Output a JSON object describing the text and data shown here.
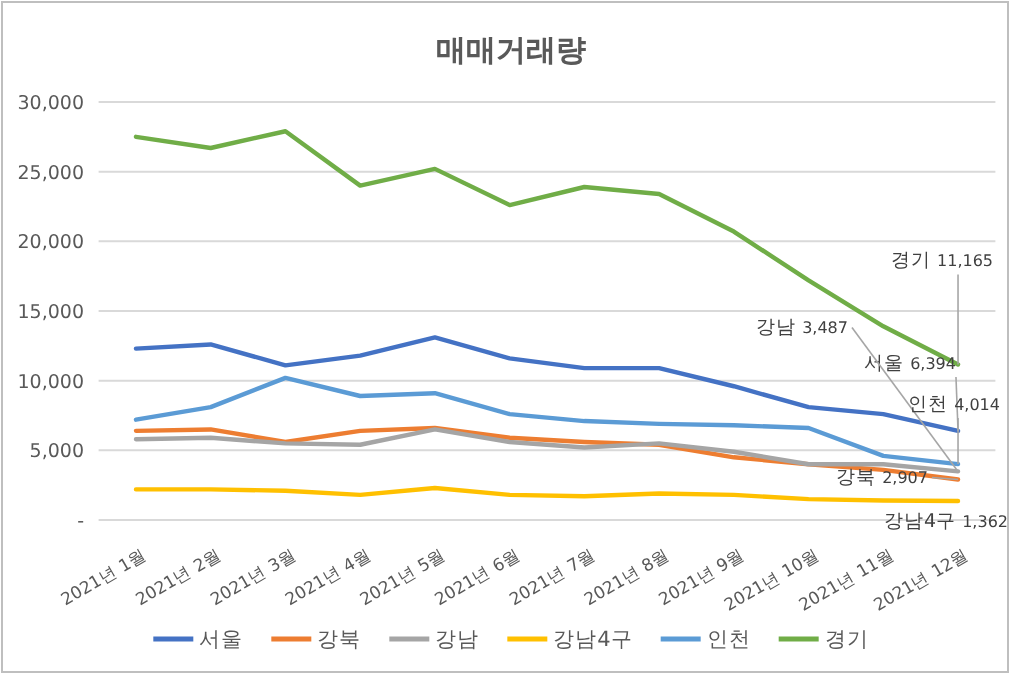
{
  "chart_data": {
    "type": "line",
    "title": "매매거래량",
    "categories": [
      "2021년 1월",
      "2021년 2월",
      "2021년 3월",
      "2021년 4월",
      "2021년 5월",
      "2021년 6월",
      "2021년 7월",
      "2021년 8월",
      "2021년 9월",
      "2021년 10월",
      "2021년 11월",
      "2021년 12월"
    ],
    "series": [
      {
        "name": "서울",
        "color": "#4472c4",
        "values": [
          12300,
          12600,
          11100,
          11800,
          13100,
          11600,
          10900,
          10900,
          9600,
          8100,
          7600,
          6394
        ],
        "value_labels": [
          null,
          null,
          null,
          null,
          null,
          null,
          null,
          null,
          null,
          null,
          null,
          "6,394"
        ]
      },
      {
        "name": "강북",
        "color": "#ed7d31",
        "values": [
          6400,
          6500,
          5600,
          6400,
          6600,
          5900,
          5600,
          5400,
          4500,
          4000,
          3600,
          2907
        ],
        "value_labels": [
          null,
          null,
          null,
          null,
          null,
          null,
          null,
          null,
          null,
          null,
          null,
          "2,907"
        ]
      },
      {
        "name": "강남",
        "color": "#a5a5a5",
        "values": [
          5800,
          5900,
          5500,
          5400,
          6500,
          5600,
          5200,
          5500,
          4900,
          4000,
          4000,
          3487
        ],
        "value_labels": [
          null,
          null,
          null,
          null,
          null,
          null,
          null,
          null,
          null,
          null,
          null,
          "3,487"
        ]
      },
      {
        "name": "강남4구",
        "color": "#ffc000",
        "values": [
          2200,
          2200,
          2100,
          1800,
          2300,
          1800,
          1700,
          1900,
          1800,
          1500,
          1400,
          1362
        ],
        "value_labels": [
          null,
          null,
          null,
          null,
          null,
          null,
          null,
          null,
          null,
          null,
          null,
          "1,362"
        ]
      },
      {
        "name": "인천",
        "color": "#5b9bd5",
        "values": [
          7200,
          8100,
          10200,
          8900,
          9100,
          7600,
          7100,
          6900,
          6800,
          6600,
          4600,
          4014
        ],
        "value_labels": [
          null,
          null,
          null,
          null,
          null,
          null,
          null,
          null,
          null,
          null,
          null,
          "4,014"
        ]
      },
      {
        "name": "경기",
        "color": "#70ad47",
        "values": [
          27500,
          26700,
          27900,
          24000,
          25200,
          22600,
          23900,
          23400,
          20700,
          17200,
          13900,
          11165
        ],
        "value_labels": [
          null,
          null,
          null,
          null,
          null,
          null,
          null,
          null,
          null,
          null,
          null,
          "11,165"
        ]
      }
    ],
    "ylim": [
      0,
      30000
    ],
    "yticks": [
      {
        "value": 0,
        "label": "-"
      },
      {
        "value": 5000,
        "label": "5,000"
      },
      {
        "value": 10000,
        "label": "10,000"
      },
      {
        "value": 15000,
        "label": "15,000"
      },
      {
        "value": 20000,
        "label": "20,000"
      },
      {
        "value": 25000,
        "label": "25,000"
      },
      {
        "value": 30000,
        "label": "30,000"
      }
    ],
    "grid": "y",
    "legend": "bottom",
    "marker": "none",
    "line_style": "solid"
  }
}
